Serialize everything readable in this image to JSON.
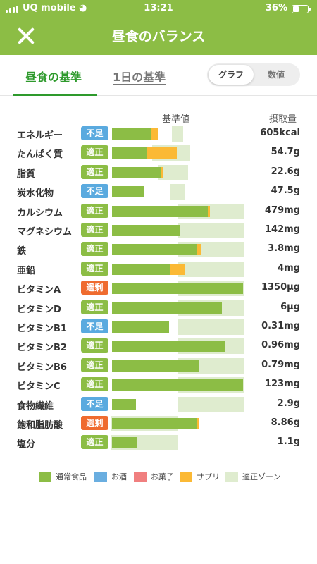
{
  "status": {
    "carrier": "UQ mobile",
    "time": "13:21",
    "battery": "36%",
    "battery_level": 0.36
  },
  "header": {
    "title": "昼食のバランス"
  },
  "tabs": [
    {
      "label": "昼食の基準"
    },
    {
      "label": "1日の基準"
    }
  ],
  "toggle": [
    {
      "label": "グラフ"
    },
    {
      "label": "数値"
    }
  ],
  "columns": {
    "reference": "基準値",
    "intake": "摂取量"
  },
  "colors": {
    "header": "#8cbd45",
    "food": "#8cbd45",
    "alcohol": "#6aaee0",
    "snack": "#f07f7f",
    "supplement": "#fbb935",
    "zone": "#dfeccf",
    "status_low": "#5aaadf",
    "status_ok": "#8cbd45",
    "status_high": "#ef6b2f"
  },
  "nutrients": [
    {
      "name": "エネルギー",
      "status": "不足",
      "amount": "605kcal"
    },
    {
      "name": "たんぱく質",
      "status": "適正",
      "amount": "54.7g"
    },
    {
      "name": "脂質",
      "status": "適正",
      "amount": "22.6g"
    },
    {
      "name": "炭水化物",
      "status": "不足",
      "amount": "47.5g"
    },
    {
      "name": "カルシウム",
      "status": "適正",
      "amount": "479mg"
    },
    {
      "name": "マグネシウム",
      "status": "適正",
      "amount": "142mg"
    },
    {
      "name": "鉄",
      "status": "適正",
      "amount": "3.8mg"
    },
    {
      "name": "亜鉛",
      "status": "適正",
      "amount": "4mg"
    },
    {
      "name": "ビタミンA",
      "status": "過剰",
      "amount": "1350µg"
    },
    {
      "name": "ビタミンD",
      "status": "適正",
      "amount": "6µg"
    },
    {
      "name": "ビタミンB1",
      "status": "不足",
      "amount": "0.31mg"
    },
    {
      "name": "ビタミンB2",
      "status": "適正",
      "amount": "0.96mg"
    },
    {
      "name": "ビタミンB6",
      "status": "適正",
      "amount": "0.79mg"
    },
    {
      "name": "ビタミンC",
      "status": "適正",
      "amount": "123mg"
    },
    {
      "name": "食物繊維",
      "status": "不足",
      "amount": "2.9g"
    },
    {
      "name": "飽和脂肪酸",
      "status": "過剰",
      "amount": "8.86g"
    },
    {
      "name": "塩分",
      "status": "適正",
      "amount": "1.1g"
    }
  ],
  "legend": [
    {
      "label": "通常食品",
      "color": "#8cbd45"
    },
    {
      "label": "お酒",
      "color": "#6aaee0"
    },
    {
      "label": "お菓子",
      "color": "#f07f7f"
    },
    {
      "label": "サプリ",
      "color": "#fbb935"
    },
    {
      "label": "適正ゾーン",
      "color": "#dfeccf"
    }
  ]
}
